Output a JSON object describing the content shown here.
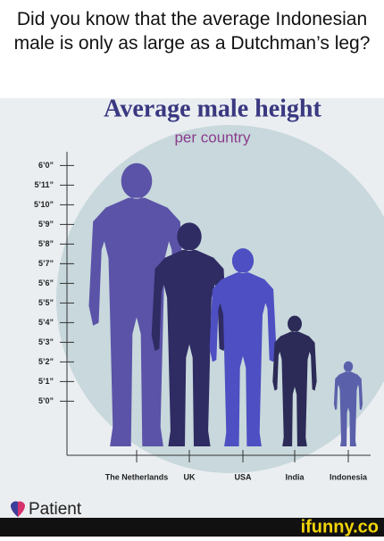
{
  "caption": "Did you know that the average Indonesian male is only as large as a Dutchman’s leg?",
  "chart_data": {
    "type": "figure",
    "title": "Average male height",
    "subtitle": "per country",
    "categories": [
      "The Netherlands",
      "UK",
      "USA",
      "India",
      "Indonesia"
    ],
    "values": [
      72,
      69,
      67.7,
      64.3,
      62
    ],
    "colors": [
      "#5b53a8",
      "#2f2b63",
      "#4d4fc2",
      "#2c2a57",
      "#5b60ab"
    ],
    "ylim": [
      57.7,
      72.7
    ],
    "yticks": [
      {
        "value": 72,
        "label": "6’0”"
      },
      {
        "value": 71,
        "label": "5’11”"
      },
      {
        "value": 70,
        "label": "5’10”"
      },
      {
        "value": 69,
        "label": "5’9”"
      },
      {
        "value": 68,
        "label": "5’8”"
      },
      {
        "value": 67,
        "label": "5’7”"
      },
      {
        "value": 66,
        "label": "5’6”"
      },
      {
        "value": 65,
        "label": "5’5”"
      },
      {
        "value": 64,
        "label": "5’4”"
      },
      {
        "value": 63,
        "label": "5’3”"
      },
      {
        "value": 62,
        "label": "5’2”"
      },
      {
        "value": 61,
        "label": "5’1”"
      },
      {
        "value": 60,
        "label": "5’0”"
      }
    ]
  },
  "logo": "Patient",
  "watermark": "ifunny.co"
}
